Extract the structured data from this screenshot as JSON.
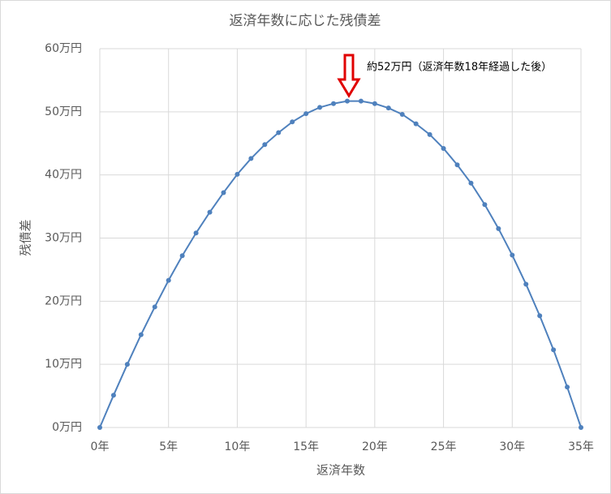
{
  "chart_data": {
    "type": "line",
    "title": "返済年数に応じた残債差",
    "x_label": "返済年数",
    "y_label": "残債差",
    "annotation": "約52万円（返済年数18年経過した後）",
    "x": [
      0,
      1,
      2,
      3,
      4,
      5,
      6,
      7,
      8,
      9,
      10,
      11,
      12,
      13,
      14,
      15,
      16,
      17,
      18,
      19,
      20,
      21,
      22,
      23,
      24,
      25,
      26,
      27,
      28,
      29,
      30,
      31,
      32,
      33,
      34,
      35
    ],
    "values": [
      0,
      5.1,
      10.0,
      14.7,
      19.1,
      23.3,
      27.2,
      30.8,
      34.1,
      37.2,
      40.1,
      42.6,
      44.8,
      46.7,
      48.4,
      49.7,
      50.7,
      51.3,
      51.7,
      51.7,
      51.3,
      50.6,
      49.6,
      48.1,
      46.4,
      44.2,
      41.6,
      38.7,
      35.3,
      31.5,
      27.3,
      22.7,
      17.7,
      12.3,
      6.4,
      0
    ],
    "color": "#4f81bd",
    "xlim": [
      0,
      35
    ],
    "xticks": [
      {
        "value": 0,
        "label": "0年"
      },
      {
        "value": 5,
        "label": "5年"
      },
      {
        "value": 10,
        "label": "10年"
      },
      {
        "value": 15,
        "label": "15年"
      },
      {
        "value": 20,
        "label": "20年"
      },
      {
        "value": 25,
        "label": "25年"
      },
      {
        "value": 30,
        "label": "30年"
      },
      {
        "value": 35,
        "label": "35年"
      }
    ],
    "ylim": [
      0,
      60
    ],
    "yticks": [
      {
        "value": 0,
        "label": "0万円"
      },
      {
        "value": 10,
        "label": "10万円"
      },
      {
        "value": 20,
        "label": "20万円"
      },
      {
        "value": 30,
        "label": "30万円"
      },
      {
        "value": 40,
        "label": "40万円"
      },
      {
        "value": 50,
        "label": "50万円"
      },
      {
        "value": 60,
        "label": "60万円"
      }
    ],
    "grid": true
  }
}
